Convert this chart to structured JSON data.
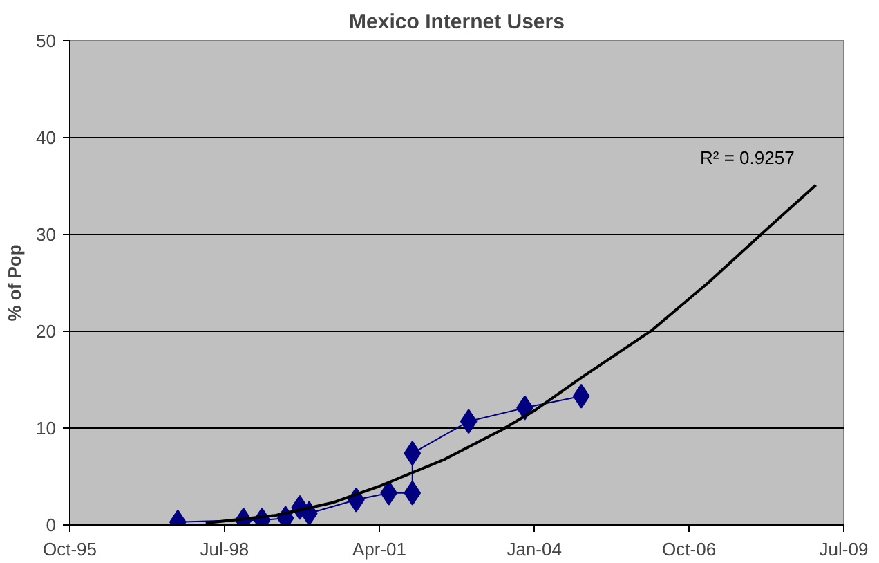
{
  "chart_data": {
    "type": "line",
    "title": "Mexico Internet Users",
    "ylabel": "% of Pop",
    "xlim": [
      "1995-10-01",
      "2009-07-01"
    ],
    "ylim": [
      0,
      50
    ],
    "xticks": [
      {
        "value": "1995-10-01",
        "label": "Oct-95"
      },
      {
        "value": "1998-07-01",
        "label": "Jul-98"
      },
      {
        "value": "2001-04-01",
        "label": "Apr-01"
      },
      {
        "value": "2004-01-01",
        "label": "Jan-04"
      },
      {
        "value": "2006-10-01",
        "label": "Oct-06"
      },
      {
        "value": "2009-07-01",
        "label": "Jul-09"
      }
    ],
    "yticks": [
      0,
      10,
      20,
      30,
      40,
      50
    ],
    "grid": "y",
    "series": [
      {
        "marker": "diamond",
        "color": "#000080",
        "x": [
          "1997-09",
          "1998-11",
          "1999-03",
          "1999-08",
          "1999-11",
          "2000-01",
          "2000-11",
          "2001-06",
          "2001-11",
          "2001-11",
          "2002-11",
          "2003-11",
          "2004-11"
        ],
        "values": [
          0.3,
          0.5,
          0.5,
          0.7,
          1.8,
          1.2,
          2.6,
          3.3,
          3.3,
          7.4,
          10.7,
          12.1,
          13.3
        ]
      },
      {
        "type": "line",
        "marker": "none",
        "color": "#000000",
        "x": [
          "1998-03",
          "1999-06",
          "2000-06",
          "2001-04",
          "2002-06",
          "2003-06",
          "2004-01",
          "2004-11",
          "2006-02",
          "2007-02",
          "2008-02",
          "2009-01"
        ],
        "values": [
          0.2,
          1.0,
          2.3,
          4.0,
          6.8,
          9.8,
          11.8,
          15.2,
          20.1,
          25.0,
          30.3,
          35.1
        ]
      }
    ],
    "annotations": [
      "R² = 0.9257"
    ]
  }
}
